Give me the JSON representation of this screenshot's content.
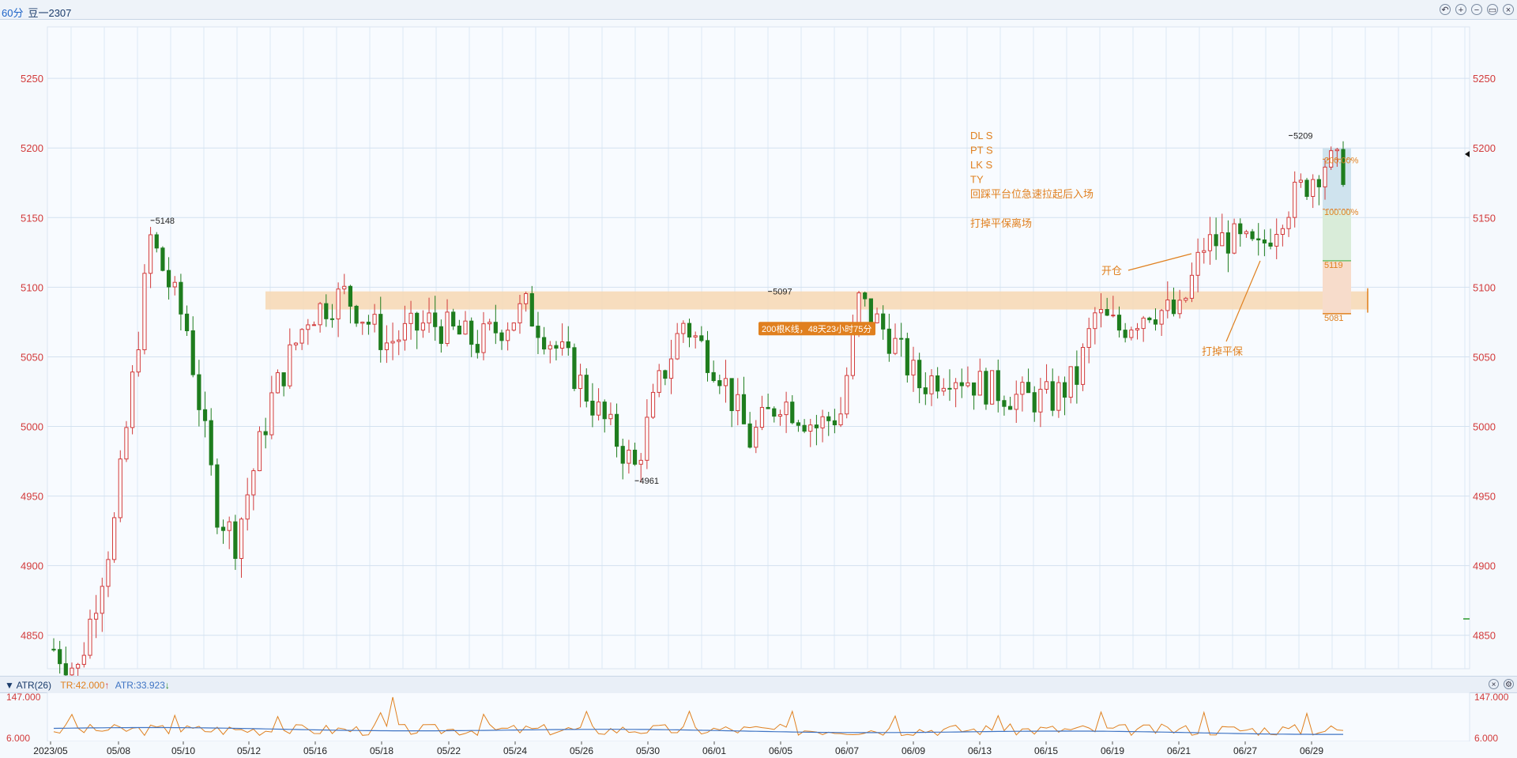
{
  "header": {
    "period": "60分",
    "symbol": "豆一2307",
    "icons": [
      "undo-icon",
      "zoom-in-icon",
      "zoom-out-icon",
      "window-icon",
      "close-icon"
    ]
  },
  "indicator": {
    "name": "ATR(26)",
    "tr_label": "TR:42.000",
    "atr_label": "ATR:33.923",
    "tr_color": "#e0801f",
    "atr_color": "#3f74c4",
    "axis_top": "147.000",
    "axis_bottom": "6.000",
    "icons": [
      "close-icon",
      "settings-icon"
    ]
  },
  "annotations": {
    "strategy_lines": [
      "DL S",
      "PT S",
      "LK S",
      "TY",
      "回踩平台位急速拉起后入场",
      "",
      "打掉平保离场"
    ],
    "open_label": "开仓",
    "stop_label": "打掉平保",
    "range_label": "200根K线，48天23小时75分",
    "high_label": "5209",
    "left_high_label": "5148",
    "low_label": "4961",
    "mid_high_label": "5097",
    "pct_upper": "200.00%",
    "pct_lower": "100.00%",
    "entry_price": "5119",
    "stop_price": "5081",
    "accent_color": "#e0801f"
  },
  "chart_data": {
    "type": "candlestick",
    "title": "",
    "xlabel": "",
    "ylabel": "",
    "ylim": [
      4826,
      5287
    ],
    "y_ticks": [
      4850,
      4900,
      4950,
      5000,
      5050,
      5100,
      5150,
      5200,
      5250
    ],
    "x_ticks": [
      "2023/05",
      "05/08",
      "05/10",
      "05/12",
      "05/16",
      "05/18",
      "05/22",
      "05/24",
      "05/26",
      "05/30",
      "06/01",
      "06/05",
      "06/07",
      "06/09",
      "06/13",
      "06/15",
      "06/19",
      "06/21",
      "06/27",
      "06/29"
    ],
    "up_color": "#d23a3a",
    "down_color": "#1e7d1e",
    "price_anchors": [
      {
        "i": 0,
        "price": 4840
      },
      {
        "i": 4,
        "price": 4825
      },
      {
        "i": 10,
        "price": 4930
      },
      {
        "i": 15,
        "price": 5100
      },
      {
        "i": 16,
        "price": 5135
      },
      {
        "i": 22,
        "price": 5070
      },
      {
        "i": 27,
        "price": 4940
      },
      {
        "i": 30,
        "price": 4918
      },
      {
        "i": 36,
        "price": 5020
      },
      {
        "i": 42,
        "price": 5080
      },
      {
        "i": 48,
        "price": 5095
      },
      {
        "i": 55,
        "price": 5060
      },
      {
        "i": 62,
        "price": 5075
      },
      {
        "i": 70,
        "price": 5060
      },
      {
        "i": 78,
        "price": 5085
      },
      {
        "i": 85,
        "price": 5045
      },
      {
        "i": 90,
        "price": 5010
      },
      {
        "i": 96,
        "price": 4970
      },
      {
        "i": 100,
        "price": 5030
      },
      {
        "i": 104,
        "price": 5075
      },
      {
        "i": 110,
        "price": 5040
      },
      {
        "i": 115,
        "price": 4990
      },
      {
        "i": 120,
        "price": 5020
      },
      {
        "i": 126,
        "price": 5000
      },
      {
        "i": 130,
        "price": 5010
      },
      {
        "i": 133,
        "price": 5090
      },
      {
        "i": 138,
        "price": 5065
      },
      {
        "i": 143,
        "price": 5030
      },
      {
        "i": 148,
        "price": 5040
      },
      {
        "i": 153,
        "price": 5030
      },
      {
        "i": 160,
        "price": 5020
      },
      {
        "i": 165,
        "price": 5020
      },
      {
        "i": 169,
        "price": 5035
      },
      {
        "i": 172,
        "price": 5080
      },
      {
        "i": 176,
        "price": 5070
      },
      {
        "i": 181,
        "price": 5085
      },
      {
        "i": 186,
        "price": 5080
      },
      {
        "i": 190,
        "price": 5130
      },
      {
        "i": 194,
        "price": 5135
      },
      {
        "i": 199,
        "price": 5125
      },
      {
        "i": 203,
        "price": 5155
      },
      {
        "i": 207,
        "price": 5175
      },
      {
        "i": 210,
        "price": 5190
      },
      {
        "i": 213,
        "price": 5185
      }
    ],
    "zone": {
      "low": 5084,
      "high": 5097
    },
    "atr_ylim": [
      6,
      147
    ]
  }
}
